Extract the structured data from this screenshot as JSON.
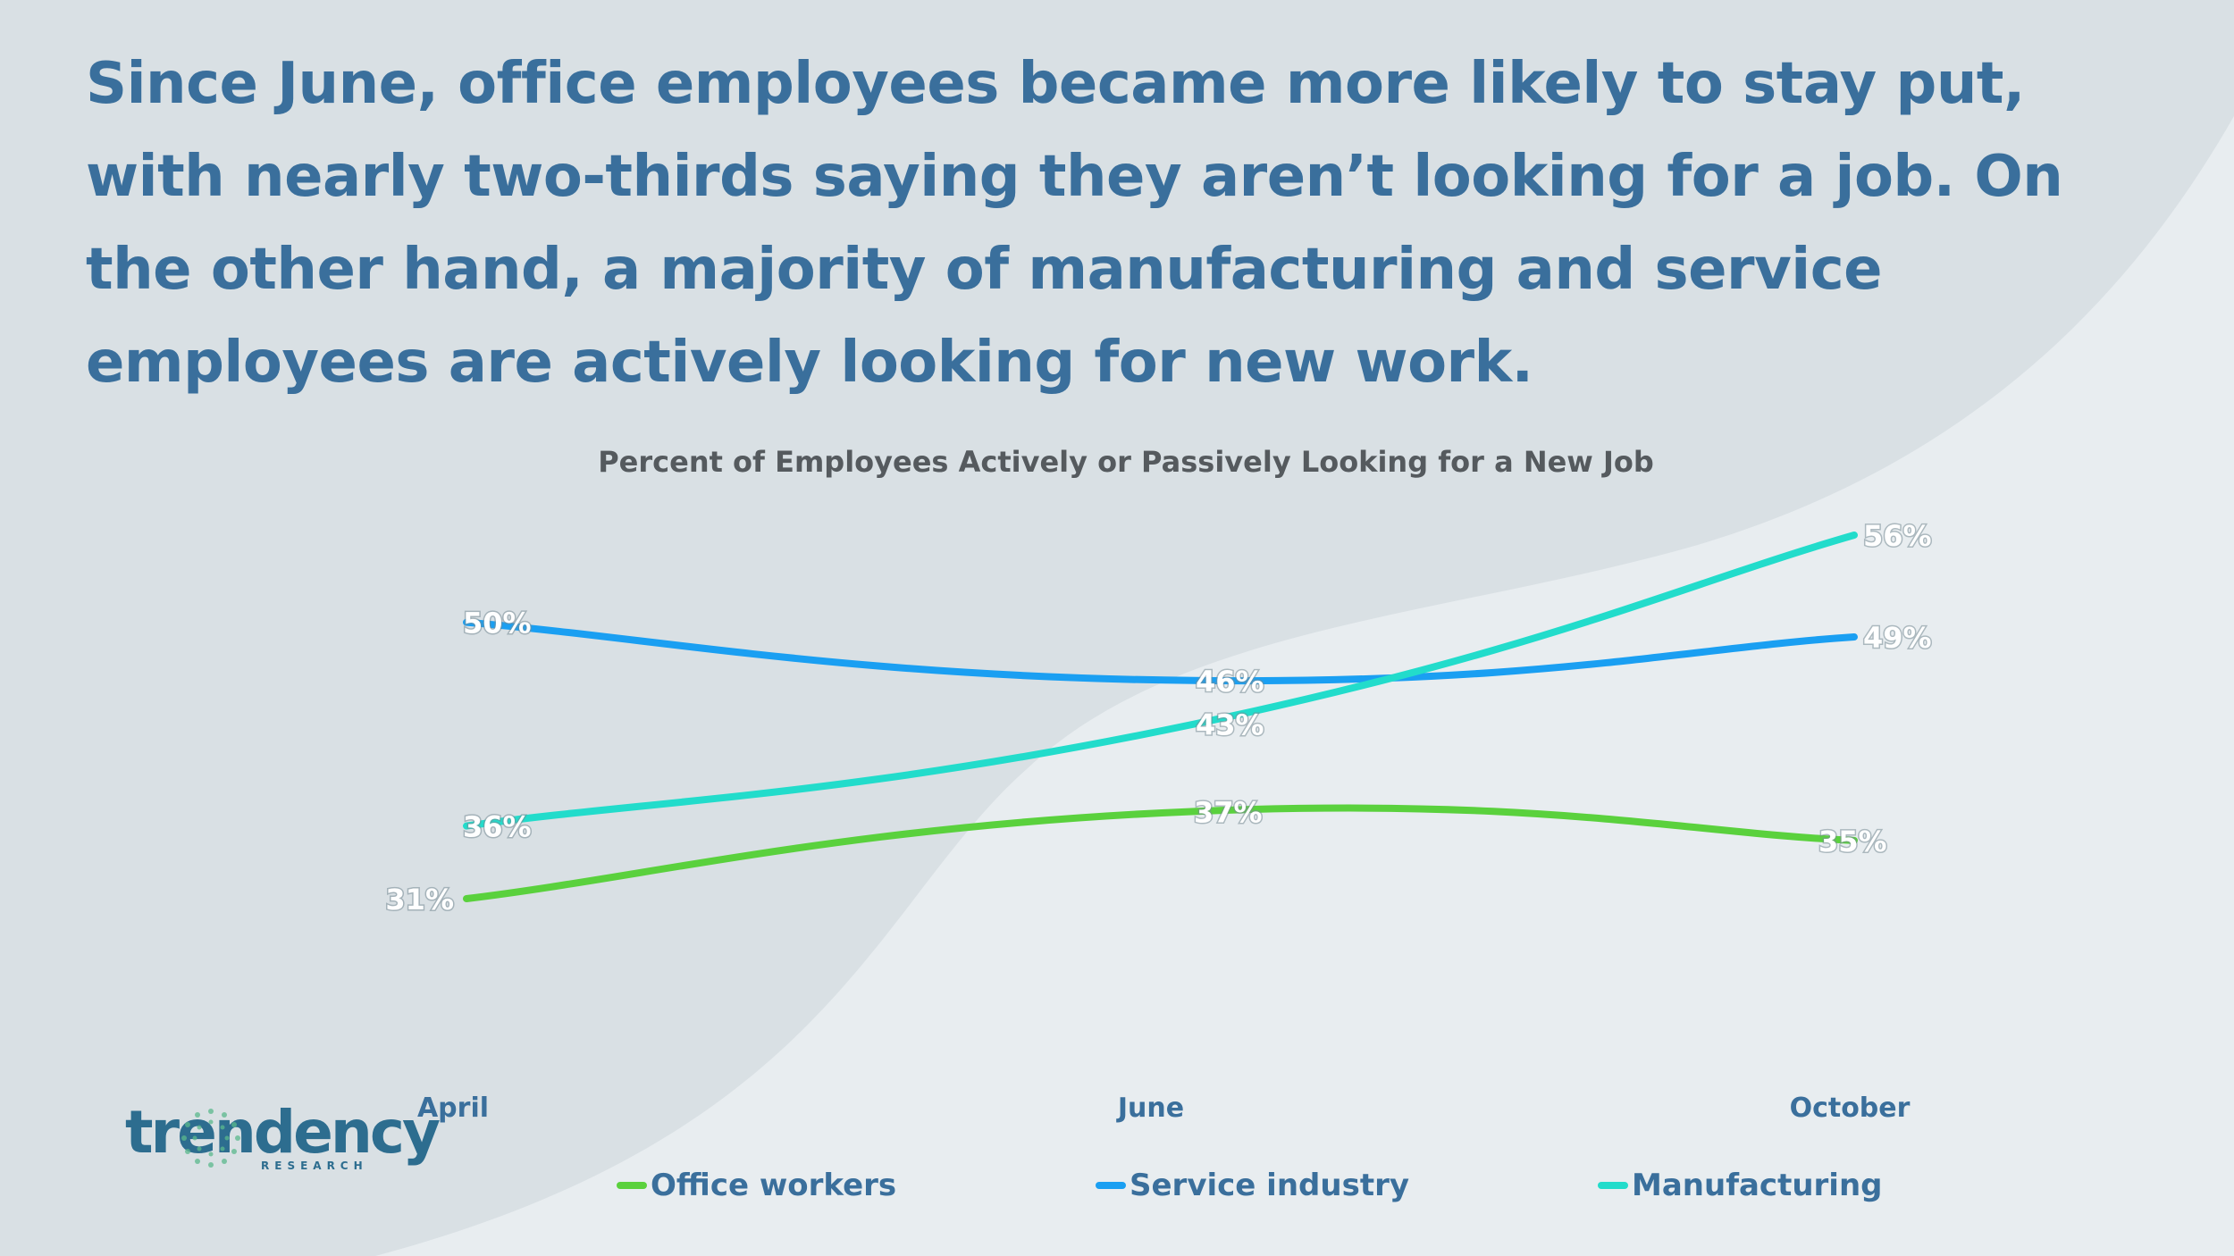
{
  "headline": "Since June, office employees became more likely to stay put, with nearly two-thirds saying they aren’t looking for a job. On the other hand, a majority of manufacturing and service employees are actively looking for new work.",
  "logo": {
    "brand": "trendency",
    "sub": "RESEARCH"
  },
  "colors": {
    "office": "#5ad13d",
    "service": "#1a9ff2",
    "manufacturing": "#22dccb",
    "text_blue": "#3a6f9c"
  },
  "chart_data": {
    "type": "line",
    "title": "Percent of Employees Actively or Passively Looking for a New Job",
    "categories": [
      "April",
      "June",
      "October"
    ],
    "series": [
      {
        "name": "Office workers",
        "values": [
          31,
          37,
          35
        ],
        "labels": [
          "31%",
          "37%",
          "35%"
        ]
      },
      {
        "name": "Service industry",
        "values": [
          50,
          46,
          49
        ],
        "labels": [
          "50%",
          "46%",
          "49%"
        ]
      },
      {
        "name": "Manufacturing",
        "values": [
          36,
          43,
          56
        ],
        "labels": [
          "36%",
          "43%",
          "56%"
        ]
      }
    ],
    "unit": "%",
    "grid": false,
    "legend": "bottom"
  }
}
